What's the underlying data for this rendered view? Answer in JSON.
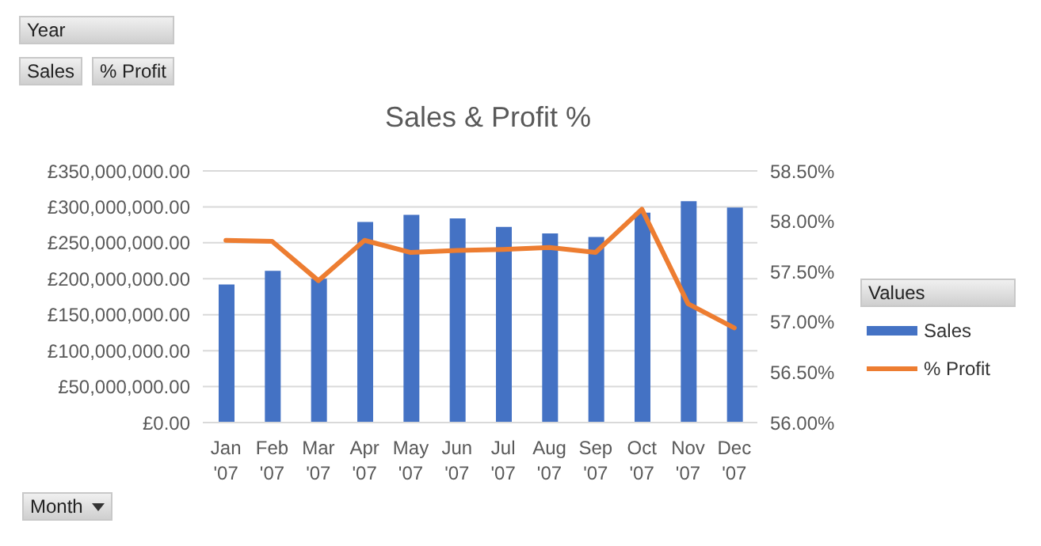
{
  "chart_data": {
    "type": "bar",
    "title": "Sales & Profit %",
    "legend_title": "Values",
    "annotations": [
      "Year",
      "Sales",
      "% Profit",
      "Month"
    ],
    "categories": [
      "Jan '07",
      "Feb '07",
      "Mar '07",
      "Apr '07",
      "May '07",
      "Jun '07",
      "Jul '07",
      "Aug '07",
      "Sep '07",
      "Oct '07",
      "Nov '07",
      "Dec '07"
    ],
    "series": [
      {
        "name": "Sales",
        "color": "#4472c4",
        "values": [
          192000000,
          211000000,
          200000000,
          279000000,
          289000000,
          284000000,
          272000000,
          263000000,
          258000000,
          292000000,
          308000000,
          299000000
        ]
      },
      {
        "name": "% Profit",
        "type": "line",
        "axis": "y2",
        "color": "#ed7d31",
        "values": [
          57.81,
          57.8,
          57.41,
          57.81,
          57.69,
          57.71,
          57.72,
          57.74,
          57.69,
          58.12,
          57.18,
          56.94
        ]
      }
    ],
    "ylim": [
      0,
      350000000
    ],
    "yticks": [
      {
        "value": 0,
        "label": "£0.00"
      },
      {
        "value": 50000000,
        "label": "£50,000,000.00"
      },
      {
        "value": 100000000,
        "label": "£100,000,000.00"
      },
      {
        "value": 150000000,
        "label": "£150,000,000.00"
      },
      {
        "value": 200000000,
        "label": "£200,000,000.00"
      },
      {
        "value": 250000000,
        "label": "£250,000,000.00"
      },
      {
        "value": 300000000,
        "label": "£300,000,000.00"
      },
      {
        "value": 350000000,
        "label": "£350,000,000.00"
      }
    ],
    "y2lim": [
      56,
      58.5
    ],
    "y2ticks": [
      {
        "value": 56,
        "label": "56.00%"
      },
      {
        "value": 56.5,
        "label": "56.50%"
      },
      {
        "value": 57,
        "label": "57.00%"
      },
      {
        "value": 57.5,
        "label": "57.50%"
      },
      {
        "value": 58,
        "label": "58.00%"
      },
      {
        "value": 58.5,
        "label": "58.50%"
      }
    ],
    "grid": "y",
    "legend": "right",
    "marker": "none",
    "line_style": "solid"
  }
}
